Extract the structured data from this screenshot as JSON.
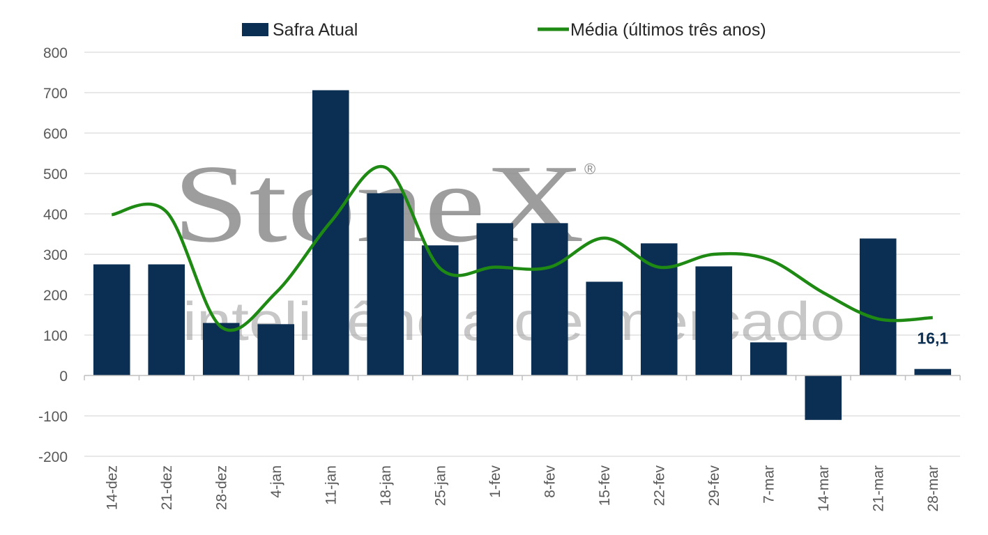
{
  "colors": {
    "bar": "#0b2f53",
    "line": "#1f8a13",
    "grid": "#d9d9d9",
    "axis": "#bfbfbf",
    "label": "#0b2f53"
  },
  "watermark": {
    "brand": "StoneX",
    "registered": "®",
    "tagline": "inteligência de mercado"
  },
  "chart_data": {
    "type": "bar+line",
    "categories": [
      "14-dez",
      "21-dez",
      "28-dez",
      "4-jan",
      "11-jan",
      "18-jan",
      "25-jan",
      "1-fev",
      "8-fev",
      "15-fev",
      "22-fev",
      "29-fev",
      "7-mar",
      "14-mar",
      "21-mar",
      "28-mar"
    ],
    "series": [
      {
        "name": "Safra Atual",
        "type": "bar",
        "values": [
          275,
          275,
          130,
          127,
          706,
          451,
          322,
          377,
          377,
          232,
          327,
          270,
          82,
          -110,
          339,
          16.1
        ]
      },
      {
        "name": "Média (últimos três anos)",
        "type": "line",
        "values": [
          398,
          405,
          120,
          205,
          380,
          515,
          265,
          268,
          268,
          340,
          268,
          300,
          287,
          205,
          140,
          143
        ]
      }
    ],
    "ylim": [
      -200,
      800
    ],
    "yticks": [
      "800",
      "700",
      "600",
      "500",
      "400",
      "300",
      "200",
      "100",
      "0",
      "-100",
      "-200"
    ],
    "ytick_values": [
      800,
      700,
      600,
      500,
      400,
      300,
      200,
      100,
      0,
      -100,
      -200
    ],
    "grid": true,
    "legend_position": "top",
    "data_labels": [
      {
        "index": 15,
        "text": "16,1"
      }
    ]
  }
}
